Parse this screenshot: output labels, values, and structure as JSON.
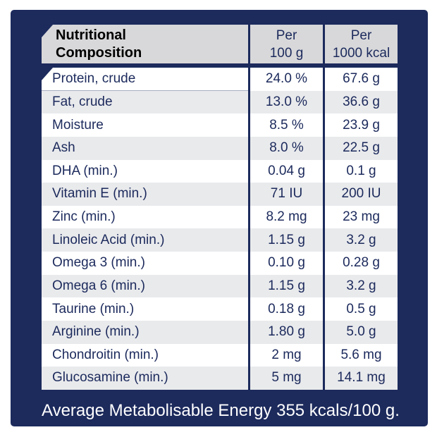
{
  "title": {
    "line1": "Nutritional",
    "line2": "Composition"
  },
  "columns": [
    {
      "line1": "Per",
      "line2": "100 g"
    },
    {
      "line1": "Per",
      "line2": "1000 kcal"
    }
  ],
  "table": {
    "column_keys": [
      "label",
      "per_100g",
      "per_1000kcal"
    ],
    "rows": [
      {
        "label": "Protein, crude",
        "per_100g": "24.0 %",
        "per_1000kcal": "67.6 g"
      },
      {
        "label": "Fat, crude",
        "per_100g": "13.0 %",
        "per_1000kcal": "36.6 g"
      },
      {
        "label": "Moisture",
        "per_100g": "8.5 %",
        "per_1000kcal": "23.9 g"
      },
      {
        "label": "Ash",
        "per_100g": "8.0 %",
        "per_1000kcal": "22.5 g"
      },
      {
        "label": "DHA (min.)",
        "per_100g": "0.04 g",
        "per_1000kcal": "0.1 g"
      },
      {
        "label": "Vitamin E (min.)",
        "per_100g": "71 IU",
        "per_1000kcal": "200 IU"
      },
      {
        "label": "Zinc (min.)",
        "per_100g": "8.2 mg",
        "per_1000kcal": "23 mg"
      },
      {
        "label": "Linoleic Acid (min.)",
        "per_100g": "1.15 g",
        "per_1000kcal": "3.2 g"
      },
      {
        "label": "Omega 3 (min.)",
        "per_100g": "0.10 g",
        "per_1000kcal": "0.28 g"
      },
      {
        "label": "Omega 6 (min.)",
        "per_100g": "1.15 g",
        "per_1000kcal": "3.2 g"
      },
      {
        "label": "Taurine (min.)",
        "per_100g": "0.18 g",
        "per_1000kcal": "0.5 g"
      },
      {
        "label": "Arginine (min.)",
        "per_100g": "1.80 g",
        "per_1000kcal": "5.0 g"
      },
      {
        "label": "Chondroitin (min.)",
        "per_100g": "2 mg",
        "per_1000kcal": "5.6 mg"
      },
      {
        "label": "Glucosamine (min.)",
        "per_100g": "5 mg",
        "per_1000kcal": "14.1 mg"
      }
    ]
  },
  "footer": {
    "text": "Average Metabolisable Energy 355 kcals/100 g."
  },
  "colors": {
    "navy": "#1c2a5c",
    "header_gray": "#d8d8da",
    "row_white": "#ffffff",
    "row_alt_gray": "#e9eaec",
    "footer_text": "#ffffff",
    "page_margin": "#ffffff"
  }
}
